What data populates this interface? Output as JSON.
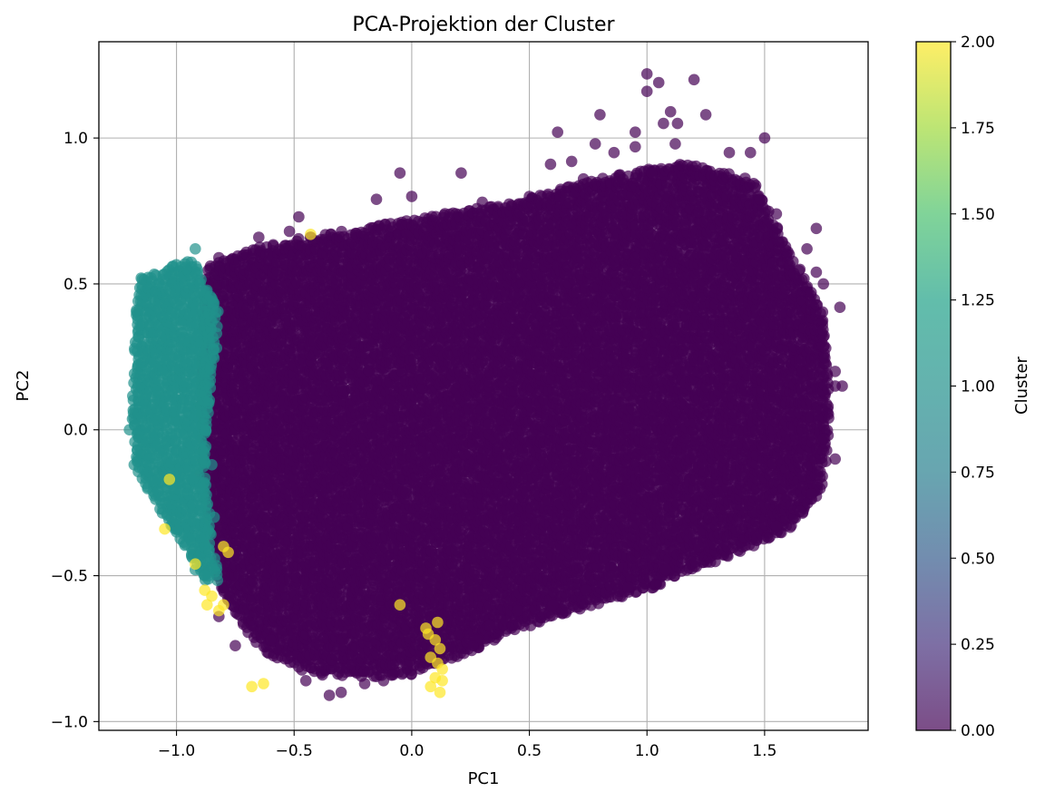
{
  "chart_data": {
    "type": "scatter",
    "title": "PCA-Projektion der Cluster",
    "xlabel": "PC1",
    "ylabel": "PC2",
    "xlim": [
      -1.33,
      1.94
    ],
    "ylim": [
      -1.03,
      1.33
    ],
    "xticks": [
      -1.0,
      -0.5,
      0.0,
      0.5,
      1.0,
      1.5
    ],
    "xtick_labels": [
      "−1.0",
      "−0.5",
      "0.0",
      "0.5",
      "1.0",
      "1.5"
    ],
    "yticks": [
      -1.0,
      -0.5,
      0.0,
      0.5,
      1.0
    ],
    "ytick_labels": [
      "−1.0",
      "−0.5",
      "0.0",
      "0.5",
      "1.0"
    ],
    "grid": true,
    "alpha": 0.7,
    "colorbar": {
      "label": "Cluster",
      "range": [
        0.0,
        2.0
      ],
      "colormap": "viridis",
      "ticks": [
        0.0,
        0.25,
        0.5,
        0.75,
        1.0,
        1.25,
        1.5,
        1.75,
        2.0
      ],
      "tick_labels": [
        "0.00",
        "0.25",
        "0.50",
        "0.75",
        "1.00",
        "1.25",
        "1.50",
        "1.75",
        "2.00"
      ]
    },
    "clusters": [
      {
        "cluster": 0,
        "color": "#440154",
        "region": [
          [
            -0.88,
            0.56
          ],
          [
            -0.6,
            0.64
          ],
          [
            -0.3,
            0.68
          ],
          [
            0.0,
            0.72
          ],
          [
            0.4,
            0.78
          ],
          [
            0.8,
            0.86
          ],
          [
            1.15,
            0.92
          ],
          [
            1.45,
            0.86
          ],
          [
            1.6,
            0.62
          ],
          [
            1.75,
            0.4
          ],
          [
            1.78,
            0.05
          ],
          [
            1.75,
            -0.2
          ],
          [
            1.6,
            -0.35
          ],
          [
            1.3,
            -0.45
          ],
          [
            1.0,
            -0.55
          ],
          [
            0.7,
            -0.62
          ],
          [
            0.4,
            -0.7
          ],
          [
            0.2,
            -0.78
          ],
          [
            0.0,
            -0.84
          ],
          [
            -0.2,
            -0.85
          ],
          [
            -0.45,
            -0.83
          ],
          [
            -0.65,
            -0.75
          ],
          [
            -0.82,
            -0.55
          ],
          [
            -0.88,
            -0.25
          ],
          [
            -0.9,
            0.1
          ]
        ],
        "outliers": [
          [
            1.0,
            1.22
          ],
          [
            1.2,
            1.2
          ],
          [
            1.05,
            1.19
          ],
          [
            1.0,
            1.16
          ],
          [
            1.1,
            1.09
          ],
          [
            1.07,
            1.05
          ],
          [
            1.25,
            1.08
          ],
          [
            0.8,
            1.08
          ],
          [
            1.13,
            1.05
          ],
          [
            0.62,
            1.02
          ],
          [
            0.95,
            1.02
          ],
          [
            1.5,
            1.0
          ],
          [
            0.95,
            0.97
          ],
          [
            0.78,
            0.98
          ],
          [
            1.12,
            0.98
          ],
          [
            1.35,
            0.95
          ],
          [
            0.59,
            0.91
          ],
          [
            0.68,
            0.92
          ],
          [
            0.86,
            0.95
          ],
          [
            1.44,
            0.95
          ],
          [
            -0.05,
            0.88
          ],
          [
            0.21,
            0.88
          ],
          [
            0.73,
            0.86
          ],
          [
            1.02,
            0.88
          ],
          [
            0.3,
            0.78
          ],
          [
            0.0,
            0.8
          ],
          [
            -0.15,
            0.79
          ],
          [
            0.5,
            0.8
          ],
          [
            1.48,
            0.79
          ],
          [
            1.55,
            0.74
          ],
          [
            1.72,
            0.69
          ],
          [
            -0.48,
            0.73
          ],
          [
            -0.52,
            0.68
          ],
          [
            -0.65,
            0.66
          ],
          [
            -0.82,
            0.59
          ],
          [
            1.68,
            0.62
          ],
          [
            1.65,
            0.55
          ],
          [
            1.72,
            0.54
          ],
          [
            1.75,
            0.5
          ],
          [
            1.82,
            0.42
          ],
          [
            1.76,
            0.28
          ],
          [
            1.8,
            0.2
          ],
          [
            1.8,
            0.15
          ],
          [
            1.83,
            0.15
          ],
          [
            1.77,
            0.08
          ],
          [
            1.75,
            -0.03
          ],
          [
            1.8,
            -0.1
          ],
          [
            1.7,
            -0.22
          ],
          [
            1.65,
            -0.28
          ],
          [
            1.55,
            -0.33
          ],
          [
            1.4,
            -0.34
          ],
          [
            1.22,
            -0.4
          ],
          [
            1.08,
            -0.48
          ],
          [
            0.92,
            -0.54
          ],
          [
            0.85,
            -0.5
          ],
          [
            0.74,
            -0.55
          ],
          [
            0.6,
            -0.6
          ],
          [
            0.45,
            -0.62
          ],
          [
            0.33,
            -0.67
          ],
          [
            0.28,
            -0.72
          ],
          [
            0.26,
            -0.74
          ],
          [
            -0.3,
            -0.9
          ],
          [
            -0.35,
            -0.91
          ],
          [
            -0.2,
            -0.87
          ],
          [
            -0.12,
            -0.86
          ],
          [
            -0.08,
            -0.84
          ],
          [
            -0.45,
            -0.86
          ],
          [
            -0.38,
            -0.84
          ],
          [
            -0.6,
            -0.72
          ],
          [
            -0.75,
            -0.74
          ],
          [
            -0.82,
            -0.64
          ],
          [
            -0.85,
            -0.28
          ],
          [
            -0.9,
            -0.15
          ],
          [
            -0.85,
            0.2
          ],
          [
            -0.88,
            0.3
          ]
        ]
      },
      {
        "cluster": 1,
        "color": "#21918c",
        "region": [
          [
            -1.16,
            0.52
          ],
          [
            -1.06,
            0.54
          ],
          [
            -0.93,
            0.6
          ],
          [
            -0.88,
            0.5
          ],
          [
            -0.82,
            0.4
          ],
          [
            -0.86,
            0.1
          ],
          [
            -0.88,
            -0.15
          ],
          [
            -0.85,
            -0.35
          ],
          [
            -0.82,
            -0.52
          ],
          [
            -0.88,
            -0.52
          ],
          [
            -0.95,
            -0.42
          ],
          [
            -1.05,
            -0.3
          ],
          [
            -1.17,
            -0.14
          ],
          [
            -1.19,
            0.05
          ],
          [
            -1.18,
            0.3
          ]
        ],
        "outliers": [
          [
            -0.92,
            0.62
          ],
          [
            -1.15,
            0.52
          ],
          [
            -1.17,
            0.41
          ],
          [
            -1.2,
            0.0
          ],
          [
            -1.18,
            -0.12
          ],
          [
            -0.85,
            0.45
          ],
          [
            -0.83,
            0.28
          ],
          [
            -0.85,
            -0.12
          ],
          [
            -0.84,
            -0.3
          ],
          [
            -0.88,
            -0.5
          ],
          [
            -0.92,
            -0.48
          ],
          [
            -1.0,
            -0.35
          ],
          [
            -0.9,
            -0.2
          ]
        ]
      },
      {
        "cluster": 2,
        "color": "#fde725",
        "region": [],
        "outliers": [
          [
            -0.68,
            -0.88
          ],
          [
            -0.63,
            -0.87
          ],
          [
            -0.43,
            0.67
          ],
          [
            -0.88,
            -0.55
          ],
          [
            -0.85,
            -0.57
          ],
          [
            -0.8,
            -0.6
          ],
          [
            -0.87,
            -0.6
          ],
          [
            -0.82,
            -0.62
          ],
          [
            -0.92,
            -0.46
          ],
          [
            -0.78,
            -0.42
          ],
          [
            -0.8,
            -0.4
          ],
          [
            -1.05,
            -0.34
          ],
          [
            -1.03,
            -0.17
          ],
          [
            0.07,
            -0.7
          ],
          [
            0.1,
            -0.72
          ],
          [
            0.12,
            -0.75
          ],
          [
            0.08,
            -0.78
          ],
          [
            0.11,
            -0.8
          ],
          [
            0.13,
            -0.82
          ],
          [
            0.1,
            -0.85
          ],
          [
            0.08,
            -0.88
          ],
          [
            0.13,
            -0.86
          ],
          [
            0.12,
            -0.9
          ],
          [
            0.06,
            -0.68
          ],
          [
            0.11,
            -0.66
          ],
          [
            -0.05,
            -0.6
          ]
        ]
      }
    ]
  }
}
